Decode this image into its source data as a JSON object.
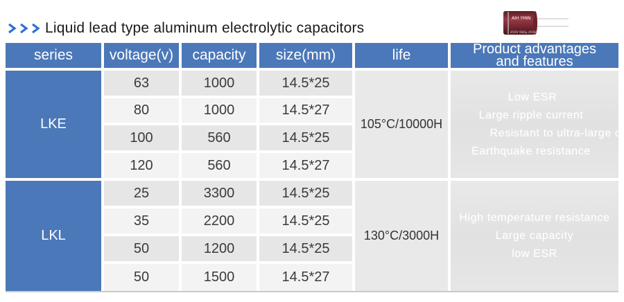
{
  "title": {
    "arrows": ">>>",
    "text": "Liquid lead type aluminum electrolytic capacitors"
  },
  "capacitor_label": {
    "brand": "AIH YMIN",
    "spec": "450V 680μ 450V"
  },
  "headers": {
    "series": "series",
    "voltage": "voltage(v)",
    "capacity": "capacity",
    "size": "size(mm)",
    "life": "life",
    "features_line1": "Product advantages",
    "features_line2": "and features"
  },
  "groups": [
    {
      "series": "LKE",
      "life": "105°C/10000H",
      "rows": [
        {
          "voltage": "63",
          "capacity": "1000",
          "size": "14.5*25"
        },
        {
          "voltage": "80",
          "capacity": "1000",
          "size": "14.5*27"
        },
        {
          "voltage": "100",
          "capacity": "560",
          "size": "14.5*25"
        },
        {
          "voltage": "120",
          "capacity": "560",
          "size": "14.5*27"
        }
      ],
      "features": [
        "Low ESR",
        "Large ripple current",
        "Resistant to ultra-large c",
        "Earthquake resistance"
      ]
    },
    {
      "series": "LKL",
      "life": "130°C/3000H",
      "rows": [
        {
          "voltage": "25",
          "capacity": "3300",
          "size": "14.5*25"
        },
        {
          "voltage": "35",
          "capacity": "2200",
          "size": "14.5*25"
        },
        {
          "voltage": "50",
          "capacity": "1200",
          "size": "14.5*25"
        },
        {
          "voltage": "50",
          "capacity": "1500",
          "size": "14.5*27"
        }
      ],
      "features": [
        "High temperature resistance",
        "Large capacity",
        "low ESR"
      ]
    }
  ],
  "colors": {
    "header_blue": "#4b78b8",
    "arrow_blue": "#2f6fd1",
    "cell_gray": "#e6e6e6",
    "capacitor_red": "#7a2a33"
  }
}
